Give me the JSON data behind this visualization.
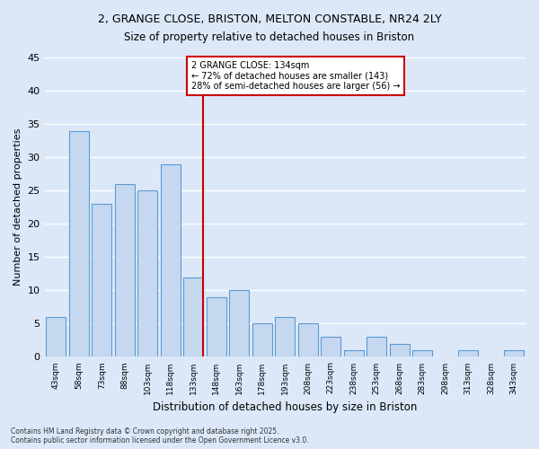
{
  "title1": "2, GRANGE CLOSE, BRISTON, MELTON CONSTABLE, NR24 2LY",
  "title2": "Size of property relative to detached houses in Briston",
  "xlabel": "Distribution of detached houses by size in Briston",
  "ylabel": "Number of detached properties",
  "categories": [
    "43sqm",
    "58sqm",
    "73sqm",
    "88sqm",
    "103sqm",
    "118sqm",
    "133sqm",
    "148sqm",
    "163sqm",
    "178sqm",
    "193sqm",
    "208sqm",
    "223sqm",
    "238sqm",
    "253sqm",
    "268sqm",
    "283sqm",
    "298sqm",
    "313sqm",
    "328sqm",
    "343sqm"
  ],
  "values": [
    6,
    34,
    23,
    26,
    25,
    29,
    12,
    9,
    10,
    5,
    6,
    5,
    3,
    1,
    3,
    2,
    1,
    0,
    1,
    0,
    1
  ],
  "bar_color": "#c5d8f0",
  "bar_edge_color": "#5b9bd5",
  "highlight_index": 6,
  "highlight_line_color": "#cc0000",
  "annotation_text": "2 GRANGE CLOSE: 134sqm\n← 72% of detached houses are smaller (143)\n28% of semi-detached houses are larger (56) →",
  "annotation_box_color": "#cc0000",
  "ylim": [
    0,
    45
  ],
  "yticks": [
    0,
    5,
    10,
    15,
    20,
    25,
    30,
    35,
    40,
    45
  ],
  "background_color": "#dce8f8",
  "grid_color": "#ffffff",
  "fig_bg_color": "#dce8f8",
  "footer1": "Contains HM Land Registry data © Crown copyright and database right 2025.",
  "footer2": "Contains public sector information licensed under the Open Government Licence v3.0."
}
